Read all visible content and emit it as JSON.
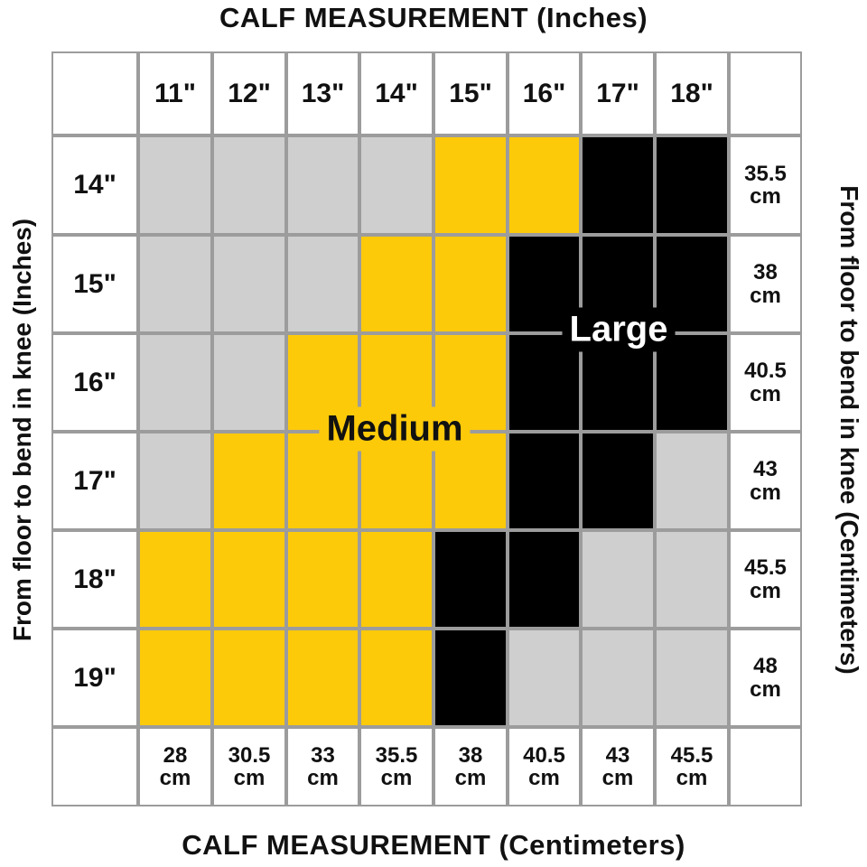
{
  "title_top": "CALF MEASUREMENT (Inches)",
  "title_bottom": "CALF MEASUREMENT (Centimeters)",
  "axis_left": "From floor to bend in knee (Inches)",
  "axis_right": "From floor to bend in knee (Centimeters)",
  "columns": {
    "inches": [
      "11\"",
      "12\"",
      "13\"",
      "14\"",
      "15\"",
      "16\"",
      "17\"",
      "18\""
    ],
    "cm": [
      "28 cm",
      "30.5 cm",
      "33 cm",
      "35.5 cm",
      "38 cm",
      "40.5 cm",
      "43 cm",
      "45.5 cm"
    ]
  },
  "rows": {
    "inches": [
      "14\"",
      "15\"",
      "16\"",
      "17\"",
      "18\"",
      "19\""
    ],
    "cm": [
      "35.5 cm",
      "38 cm",
      "40.5 cm",
      "43 cm",
      "45.5 cm",
      "48 cm"
    ]
  },
  "cell_colors": [
    [
      "#cfcfcf",
      "#cfcfcf",
      "#cfcfcf",
      "#cfcfcf",
      "#fdca0a",
      "#fdca0a",
      "#000000",
      "#000000"
    ],
    [
      "#cfcfcf",
      "#cfcfcf",
      "#cfcfcf",
      "#fdca0a",
      "#fdca0a",
      "#000000",
      "#000000",
      "#000000"
    ],
    [
      "#cfcfcf",
      "#cfcfcf",
      "#fdca0a",
      "#fdca0a",
      "#fdca0a",
      "#000000",
      "#000000",
      "#000000"
    ],
    [
      "#cfcfcf",
      "#fdca0a",
      "#fdca0a",
      "#fdca0a",
      "#fdca0a",
      "#000000",
      "#000000",
      "#cfcfcf"
    ],
    [
      "#fdca0a",
      "#fdca0a",
      "#fdca0a",
      "#fdca0a",
      "#000000",
      "#000000",
      "#cfcfcf",
      "#cfcfcf"
    ],
    [
      "#fdca0a",
      "#fdca0a",
      "#fdca0a",
      "#fdca0a",
      "#000000",
      "#cfcfcf",
      "#cfcfcf",
      "#cfcfcf"
    ]
  ],
  "sizes": {
    "medium": "Medium",
    "large": "Large"
  }
}
